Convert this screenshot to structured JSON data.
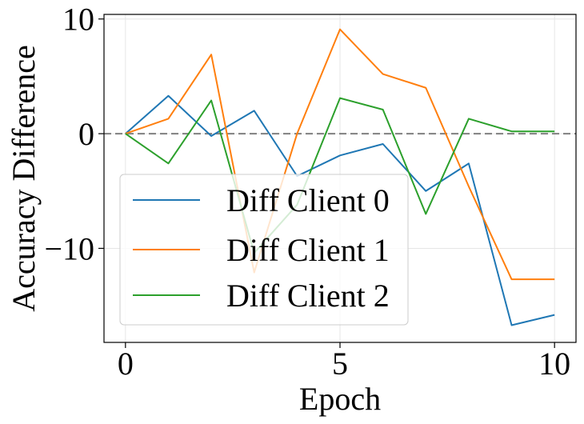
{
  "chart_data": {
    "type": "line",
    "title": "",
    "xlabel": "Epoch",
    "ylabel": "Accuracy Difference",
    "x": [
      0,
      1,
      2,
      3,
      4,
      5,
      6,
      7,
      8,
      9,
      10
    ],
    "xlim": [
      -0.5,
      10.5
    ],
    "ylim": [
      -18.2,
      10.4
    ],
    "xticks": [
      0,
      5,
      10
    ],
    "yticks": [
      -10,
      0,
      10
    ],
    "xtick_labels": [
      "0",
      "5",
      "10"
    ],
    "ytick_labels": [
      "−10",
      "0",
      "10"
    ],
    "grid": true,
    "reference_line": {
      "y": 0,
      "style": "dashed",
      "color": "#808080"
    },
    "legend": {
      "placement": "lower-left"
    },
    "series": [
      {
        "name": "Diff Client 0",
        "color": "#1f77b4",
        "values": [
          0,
          3.3,
          -0.2,
          2.0,
          -3.7,
          -1.9,
          -0.9,
          -5.0,
          -2.6,
          -16.7,
          -15.8
        ]
      },
      {
        "name": "Diff Client 1",
        "color": "#ff7f0e",
        "values": [
          0,
          1.3,
          6.9,
          -12.1,
          0.0,
          9.1,
          5.2,
          4.0,
          -4.6,
          -12.7,
          -12.7
        ]
      },
      {
        "name": "Diff Client 2",
        "color": "#2ca02c",
        "values": [
          0,
          -2.6,
          2.9,
          -10.4,
          -6.2,
          3.1,
          2.1,
          -7.0,
          1.3,
          0.2,
          0.2
        ]
      }
    ]
  }
}
